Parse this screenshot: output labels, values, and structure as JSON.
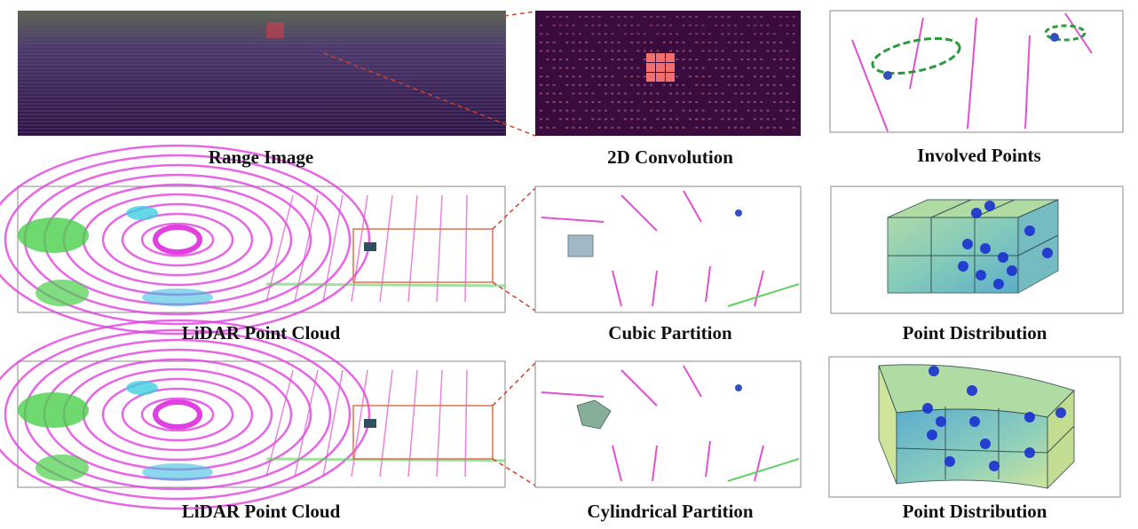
{
  "figure": {
    "rows": [
      {
        "captions": [
          "Range Image",
          "2D Convolution",
          "Involved Points"
        ]
      },
      {
        "captions": [
          "LiDAR Point Cloud",
          "Cubic Partition",
          "Point Distribution"
        ]
      },
      {
        "captions": [
          "LiDAR Point Cloud",
          "Cylindrical Partition",
          "Point Distribution"
        ]
      }
    ]
  }
}
